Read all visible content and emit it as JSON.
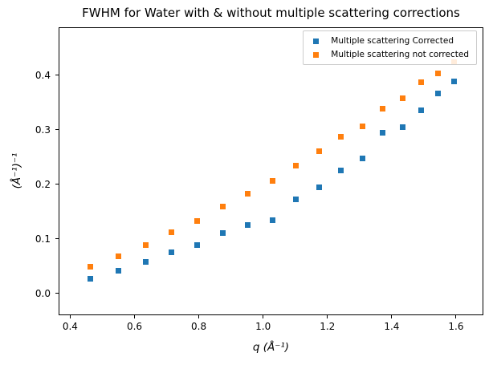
{
  "chart_data": {
    "type": "scatter",
    "title": "FWHM for Water with & without multiple scattering corrections",
    "xlabel": "q (Å⁻¹)",
    "ylabel": "(Å⁻¹)⁻¹",
    "xlim": [
      0.364,
      1.685
    ],
    "ylim": [
      -0.04,
      0.488
    ],
    "xticks": [
      0.4,
      0.6,
      0.8,
      1.0,
      1.2,
      1.4,
      1.6
    ],
    "xtick_labels": [
      "0.4",
      "0.6",
      "0.8",
      "1.0",
      "1.2",
      "1.4",
      "1.6"
    ],
    "yticks": [
      0.0,
      0.1,
      0.2,
      0.3,
      0.4
    ],
    "ytick_labels": [
      "0.0",
      "0.1",
      "0.2",
      "0.3",
      "0.4"
    ],
    "grid": false,
    "legend_position": "upper right",
    "marker": "square",
    "x": [
      0.463,
      0.549,
      0.634,
      0.716,
      0.795,
      0.874,
      0.951,
      1.029,
      1.102,
      1.174,
      1.243,
      1.31,
      1.372,
      1.435,
      1.492,
      1.544,
      1.595
    ],
    "series": [
      {
        "name": "Multiple scattering Corrected",
        "color": "#1f77b4",
        "values": [
          0.027,
          0.042,
          0.058,
          0.075,
          0.088,
          0.111,
          0.125,
          0.135,
          0.173,
          0.194,
          0.225,
          0.247,
          0.294,
          0.305,
          0.336,
          0.367,
          0.388
        ]
      },
      {
        "name": "Multiple scattering not corrected",
        "color": "#ff7f0e",
        "values": [
          0.049,
          0.068,
          0.088,
          0.112,
          0.133,
          0.16,
          0.183,
          0.207,
          0.234,
          0.261,
          0.287,
          0.307,
          0.338,
          0.358,
          0.387,
          0.404,
          0.424
        ]
      }
    ]
  }
}
